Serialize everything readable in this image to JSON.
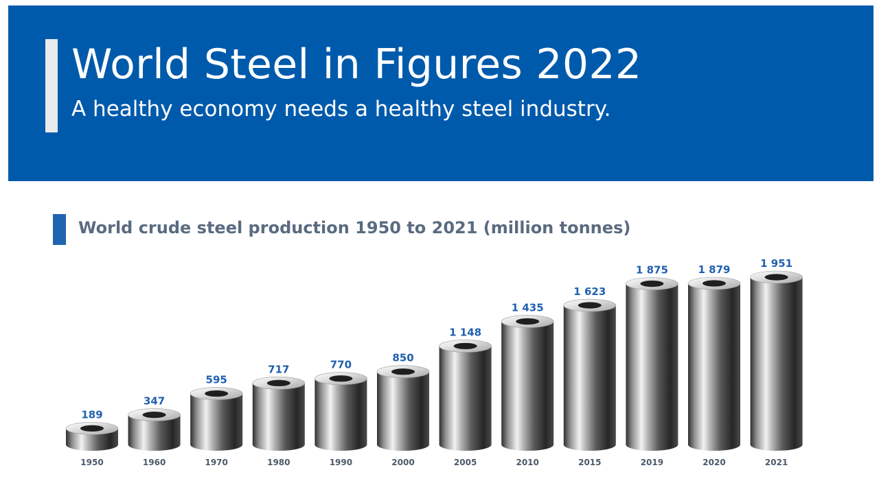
{
  "header": {
    "title": "World Steel in Figures 2022",
    "subtitle": "A healthy economy needs a healthy steel industry."
  },
  "colors": {
    "banner": "#005aab",
    "value_label": "#1f5fae",
    "year_label": "#4b5968",
    "chart_title": "#5a6b80"
  },
  "chart_data": {
    "type": "bar",
    "title": "World crude steel production 1950 to 2021 (million tonnes)",
    "categories": [
      "1950",
      "1960",
      "1970",
      "1980",
      "1990",
      "2000",
      "2005",
      "2010",
      "2015",
      "2019",
      "2020",
      "2021"
    ],
    "values": [
      189,
      347,
      595,
      717,
      770,
      850,
      1148,
      1435,
      1623,
      1875,
      1879,
      1951
    ],
    "value_labels": [
      "189",
      "347",
      "595",
      "717",
      "770",
      "850",
      "1 148",
      "1 435",
      "1 623",
      "1 875",
      "1 879",
      "1 951"
    ],
    "bar_style": "steel-cylinder",
    "grid": false,
    "legend": "none"
  }
}
